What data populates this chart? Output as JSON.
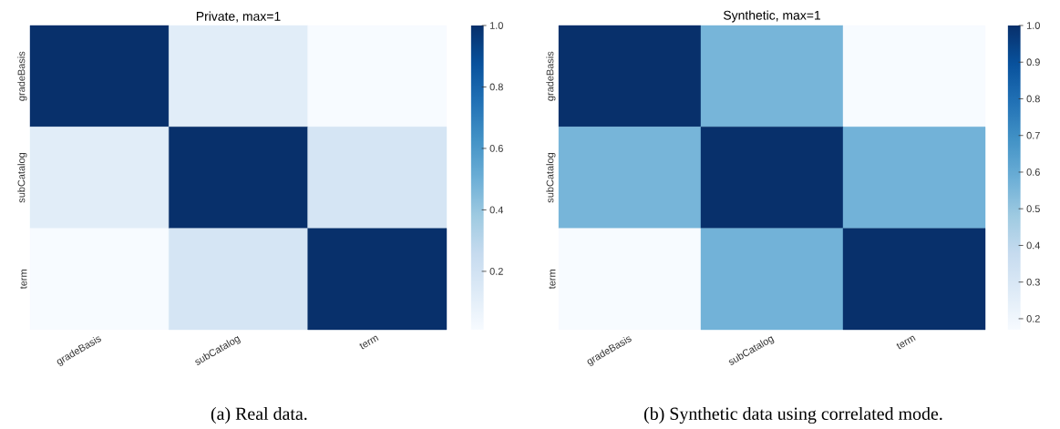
{
  "chart_data": [
    {
      "type": "heatmap",
      "title": "Private, max=1",
      "categories": [
        "gradeBasis",
        "subCatalog",
        "term"
      ],
      "y_categories": [
        "gradeBasis",
        "subCatalog",
        "term"
      ],
      "cells": [
        [
          1.0,
          0.12,
          0.01
        ],
        [
          0.12,
          1.0,
          0.18
        ],
        [
          0.01,
          0.18,
          1.0
        ]
      ],
      "clim": [
        0.01,
        1.0
      ],
      "cticks": [
        0.2,
        0.4,
        0.6,
        0.8,
        {
          "value": 1.0,
          "label": "1.0"
        }
      ],
      "annotations": [
        "(a) Real data."
      ]
    },
    {
      "type": "heatmap",
      "title": "Synthetic, max=1",
      "categories": [
        "gradeBasis",
        "subCatalog",
        "term"
      ],
      "y_categories": [
        "gradeBasis",
        "subCatalog",
        "term"
      ],
      "cells": [
        [
          1.0,
          0.56,
          0.17
        ],
        [
          0.56,
          1.0,
          0.57
        ],
        [
          0.17,
          0.57,
          1.0
        ]
      ],
      "clim": [
        0.17,
        1.0
      ],
      "cticks": [
        0.2,
        0.3,
        0.4,
        0.5,
        0.6,
        0.7,
        0.8,
        0.9,
        {
          "value": 1.0,
          "label": "1.0"
        }
      ],
      "annotations": [
        "(b) Synthetic data using correlated mode."
      ]
    }
  ]
}
